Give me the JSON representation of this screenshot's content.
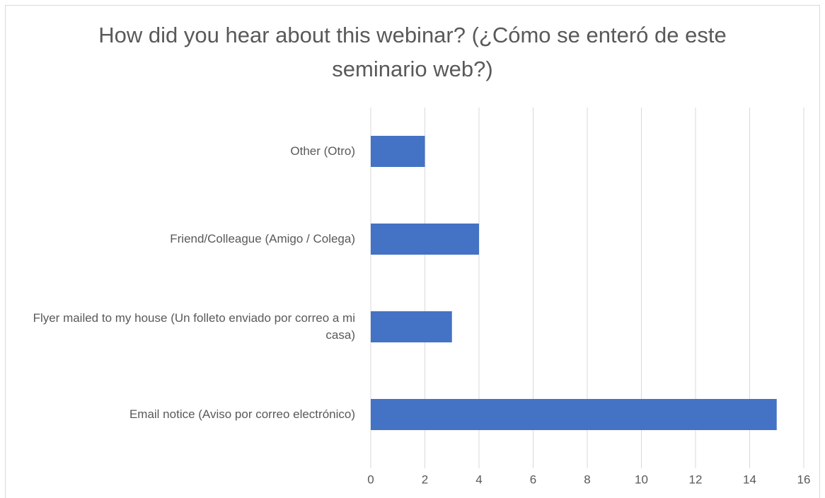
{
  "chart_data": {
    "type": "bar",
    "orientation": "horizontal",
    "title": "How did you hear about this webinar? (¿Cómo se enteró de este seminario web?)",
    "categories": [
      "Email notice (Aviso por correo electrónico)",
      "Flyer mailed to my house (Un folleto enviado por correo a mi casa)",
      "Friend/Colleague (Amigo / Colega)",
      "Other (Otro)"
    ],
    "values": [
      15,
      3,
      4,
      2
    ],
    "color": "#4472c4",
    "xlim": [
      0,
      16
    ],
    "xticks": [
      0,
      2,
      4,
      6,
      8,
      10,
      12,
      14,
      16
    ],
    "grid": true
  }
}
